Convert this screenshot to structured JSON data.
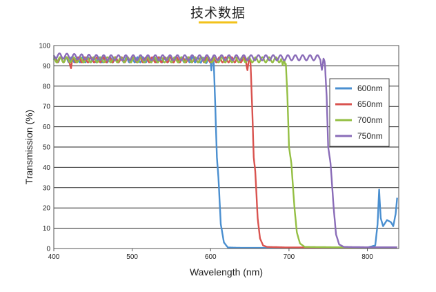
{
  "page": {
    "title": "技术数据"
  },
  "chart_data": {
    "type": "line",
    "title": "",
    "xlabel": "Wavelength (nm)",
    "ylabel": "Transmission (%)",
    "xlim": [
      400,
      840
    ],
    "ylim": [
      0,
      100
    ],
    "x_ticks": [
      400,
      500,
      600,
      700,
      800
    ],
    "y_ticks": [
      0,
      10,
      20,
      30,
      40,
      50,
      60,
      70,
      80,
      90,
      100
    ],
    "grid": {
      "horizontal": true,
      "vertical": false
    },
    "legend": {
      "position": "right"
    },
    "series": [
      {
        "name": "600nm",
        "color": "#4a8fd0",
        "points": [
          [
            400,
            93
          ],
          [
            460,
            93
          ],
          [
            520,
            93
          ],
          [
            580,
            93
          ],
          [
            600,
            92.5
          ],
          [
            601,
            89
          ],
          [
            602,
            93
          ],
          [
            604,
            92
          ],
          [
            606,
            70
          ],
          [
            608,
            45
          ],
          [
            610,
            35
          ],
          [
            613,
            12
          ],
          [
            617,
            3
          ],
          [
            622,
            0.5
          ],
          [
            640,
            0.3
          ],
          [
            700,
            0.3
          ],
          [
            760,
            0.4
          ],
          [
            800,
            0.5
          ],
          [
            810,
            1.5
          ],
          [
            813,
            12
          ],
          [
            815,
            29
          ],
          [
            817,
            15
          ],
          [
            820,
            11
          ],
          [
            825,
            14
          ],
          [
            830,
            13
          ],
          [
            833,
            11
          ],
          [
            836,
            17
          ],
          [
            838,
            25
          ]
        ]
      },
      {
        "name": "650nm",
        "color": "#d9534f",
        "points": [
          [
            400,
            93
          ],
          [
            420,
            93
          ],
          [
            422,
            89
          ],
          [
            424,
            93
          ],
          [
            460,
            93
          ],
          [
            520,
            93
          ],
          [
            600,
            93
          ],
          [
            645,
            93
          ],
          [
            647,
            89
          ],
          [
            649,
            93
          ],
          [
            651,
            91
          ],
          [
            653,
            70
          ],
          [
            655,
            45
          ],
          [
            657,
            38
          ],
          [
            660,
            15
          ],
          [
            663,
            5
          ],
          [
            667,
            1.5
          ],
          [
            672,
            0.8
          ],
          [
            700,
            0.5
          ],
          [
            760,
            0.5
          ],
          [
            838,
            0.5
          ]
        ]
      },
      {
        "name": "700nm",
        "color": "#94bf43",
        "points": [
          [
            400,
            93
          ],
          [
            440,
            93
          ],
          [
            500,
            93
          ],
          [
            560,
            93
          ],
          [
            620,
            93
          ],
          [
            690,
            93
          ],
          [
            692,
            89
          ],
          [
            694,
            93
          ],
          [
            696,
            91
          ],
          [
            698,
            75
          ],
          [
            700,
            50
          ],
          [
            703,
            42
          ],
          [
            707,
            20
          ],
          [
            710,
            8
          ],
          [
            714,
            2.5
          ],
          [
            720,
            0.8
          ],
          [
            760,
            0.6
          ],
          [
            838,
            0.6
          ]
        ]
      },
      {
        "name": "750nm",
        "color": "#8a6cb8",
        "points": [
          [
            400,
            95
          ],
          [
            460,
            94
          ],
          [
            520,
            94
          ],
          [
            580,
            94
          ],
          [
            640,
            94
          ],
          [
            700,
            94
          ],
          [
            740,
            94
          ],
          [
            742,
            89
          ],
          [
            744,
            93
          ],
          [
            746,
            90
          ],
          [
            748,
            75
          ],
          [
            750,
            50
          ],
          [
            753,
            42
          ],
          [
            757,
            20
          ],
          [
            760,
            7
          ],
          [
            764,
            2
          ],
          [
            770,
            0.8
          ],
          [
            800,
            0.6
          ],
          [
            838,
            0.6
          ]
        ]
      }
    ]
  }
}
